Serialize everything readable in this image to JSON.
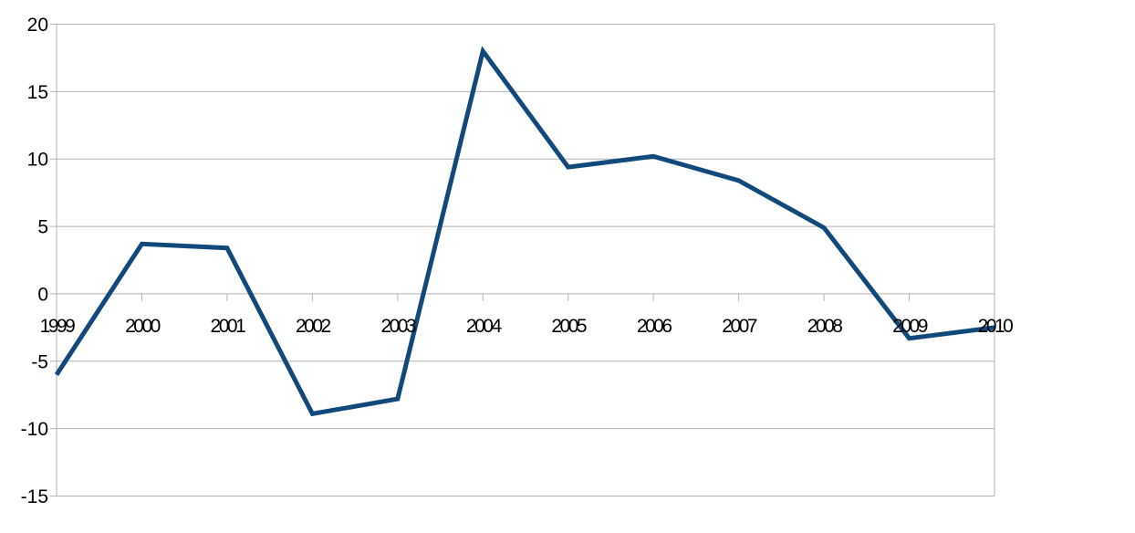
{
  "chart_data": {
    "type": "line",
    "title": "",
    "xlabel": "",
    "ylabel": "",
    "categories": [
      "1999",
      "2000",
      "2001",
      "2002",
      "2003",
      "2004",
      "2005",
      "2006",
      "2007",
      "2008",
      "2009",
      "2010"
    ],
    "series": [
      {
        "name": "series-1",
        "values": [
          -6.0,
          3.7,
          3.4,
          -8.9,
          -7.8,
          18.0,
          9.4,
          10.2,
          8.4,
          4.9,
          -3.3,
          -2.5
        ],
        "color": "#11497C",
        "line_width": 5
      }
    ],
    "ylim": [
      -15,
      20
    ],
    "ytick_step": 5,
    "ytick_labels": [
      "20",
      "15",
      "10",
      "5",
      "0",
      "-5",
      "-10",
      "-15"
    ],
    "grid": "horizontal",
    "legend_position": "none",
    "colors": {
      "background": "#ffffff",
      "gridline": "#b3b3b3",
      "axis": "#b3b3b3",
      "label": "#000000"
    }
  }
}
